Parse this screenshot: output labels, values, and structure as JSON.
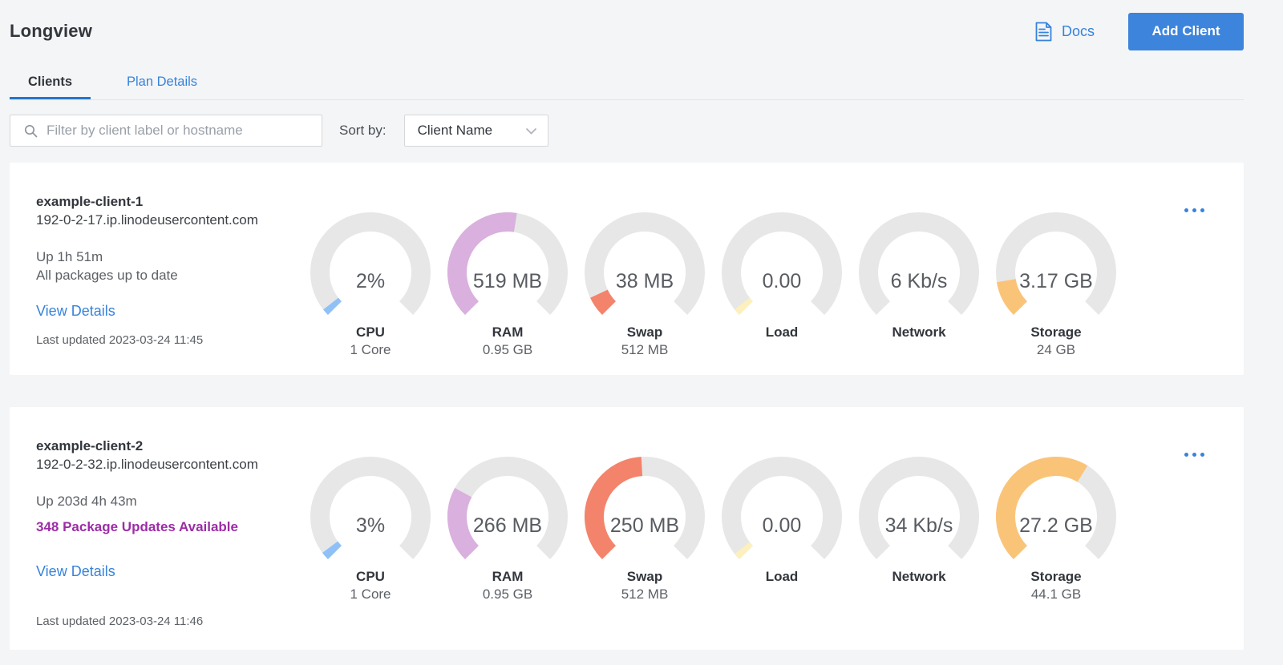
{
  "header": {
    "title": "Longview",
    "docs_label": "Docs",
    "add_client_label": "Add Client"
  },
  "tabs": [
    {
      "label": "Clients",
      "active": true
    },
    {
      "label": "Plan Details",
      "active": false
    }
  ],
  "filter": {
    "placeholder": "Filter by client label or hostname",
    "sort_by_label": "Sort by:",
    "sort_value": "Client Name"
  },
  "colors": {
    "accent_blue": "#3683dc",
    "tab_underline": "#2575d0",
    "button_blue": "#3c84dc",
    "purple_updates": "#9b2da5",
    "gauge_track": "#e7e7e7",
    "gauge_cpu": "#8fc1f8",
    "gauge_ram": "#d9b0de",
    "gauge_swap": "#f4836b",
    "gauge_load": "#fdf0bc",
    "gauge_storage": "#fac478"
  },
  "clients": [
    {
      "name": "example-client-1",
      "hostname": "192-0-2-17.ip.linodeusercontent.com",
      "uptime": "Up 1h 51m",
      "packages": "All packages up to date",
      "packages_highlighted": false,
      "view_details_label": "View Details",
      "last_updated": "Last updated 2023-03-24 11:45",
      "gauges": [
        {
          "label": "CPU",
          "value_text": "2%",
          "sublabel": "1 Core",
          "percent": 2,
          "color": "#8fc1f8"
        },
        {
          "label": "RAM",
          "value_text": "519 MB",
          "sublabel": "0.95 GB",
          "percent": 53.3,
          "color": "#d9b0de"
        },
        {
          "label": "Swap",
          "value_text": "38 MB",
          "sublabel": "512 MB",
          "percent": 7.4,
          "color": "#f4836b"
        },
        {
          "label": "Load",
          "value_text": "0.00",
          "sublabel": "",
          "percent": 1,
          "color": "#fdf0bc"
        },
        {
          "label": "Network",
          "value_text": "6 Kb/s",
          "sublabel": "",
          "percent": 0,
          "color": "#fdf0bc"
        },
        {
          "label": "Storage",
          "value_text": "3.17 GB",
          "sublabel": "24 GB",
          "percent": 13.2,
          "color": "#fac478"
        }
      ]
    },
    {
      "name": "example-client-2",
      "hostname": "192-0-2-32.ip.linodeusercontent.com",
      "uptime": "Up 203d 4h 43m",
      "packages": "348 Package Updates Available",
      "packages_highlighted": true,
      "view_details_label": "View Details",
      "last_updated": "Last updated 2023-03-24 11:46",
      "gauges": [
        {
          "label": "CPU",
          "value_text": "3%",
          "sublabel": "1 Core",
          "percent": 3,
          "color": "#8fc1f8"
        },
        {
          "label": "RAM",
          "value_text": "266 MB",
          "sublabel": "0.95 GB",
          "percent": 27.3,
          "color": "#d9b0de"
        },
        {
          "label": "Swap",
          "value_text": "250 MB",
          "sublabel": "512 MB",
          "percent": 48.8,
          "color": "#f4836b"
        },
        {
          "label": "Load",
          "value_text": "0.00",
          "sublabel": "",
          "percent": 1,
          "color": "#fdf0bc"
        },
        {
          "label": "Network",
          "value_text": "34 Kb/s",
          "sublabel": "",
          "percent": 0,
          "color": "#fdf0bc"
        },
        {
          "label": "Storage",
          "value_text": "27.2 GB",
          "sublabel": "44.1 GB",
          "percent": 61.7,
          "color": "#fac478"
        }
      ]
    }
  ]
}
